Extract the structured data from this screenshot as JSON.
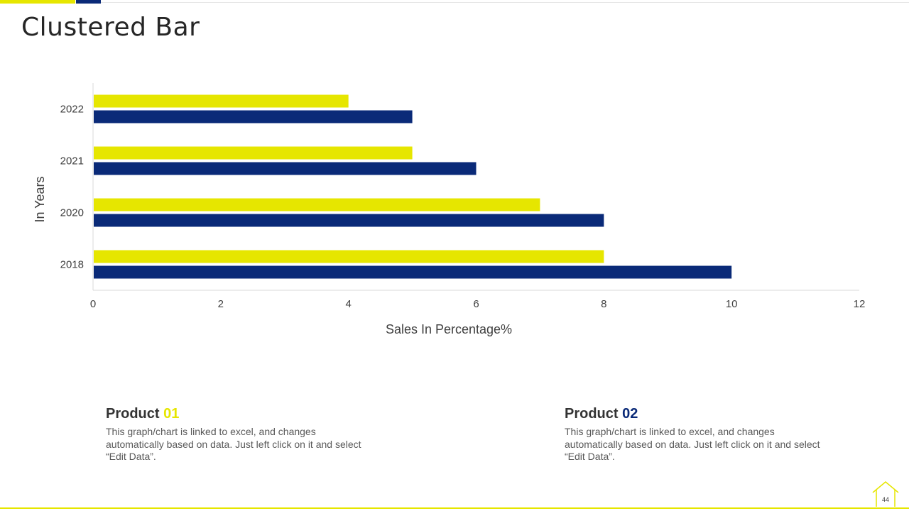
{
  "title": "Clustered Bar",
  "colors": {
    "accent_yellow": "#e6e600",
    "accent_navy": "#0a2a78"
  },
  "chart_data": {
    "type": "bar",
    "orientation": "horizontal",
    "categories": [
      "2018",
      "2020",
      "2021",
      "2022"
    ],
    "series": [
      {
        "name": "Product 01",
        "values": [
          8,
          7,
          5,
          4
        ],
        "color": "#e6e600"
      },
      {
        "name": "Product 02",
        "values": [
          10,
          8,
          6,
          5
        ],
        "color": "#0a2a78"
      }
    ],
    "xlabel": "Sales In Percentage%",
    "ylabel": "In Years",
    "xlim": [
      0,
      12
    ],
    "xticks": [
      0,
      2,
      4,
      6,
      8,
      10,
      12
    ],
    "grid": false,
    "legend": "none"
  },
  "products": [
    {
      "name": "Product",
      "number": "01",
      "number_color": "#e6e600",
      "description": "This graph/chart is linked to excel, and changes automatically based on data. Just left click on it and select “Edit Data”."
    },
    {
      "name": "Product",
      "number": "02",
      "number_color": "#0a2a78",
      "description": "This graph/chart is linked to excel, and changes automatically based on data. Just left click on it and select “Edit Data”."
    }
  ],
  "page_number": "44",
  "footer_icon": "house-outline-icon"
}
